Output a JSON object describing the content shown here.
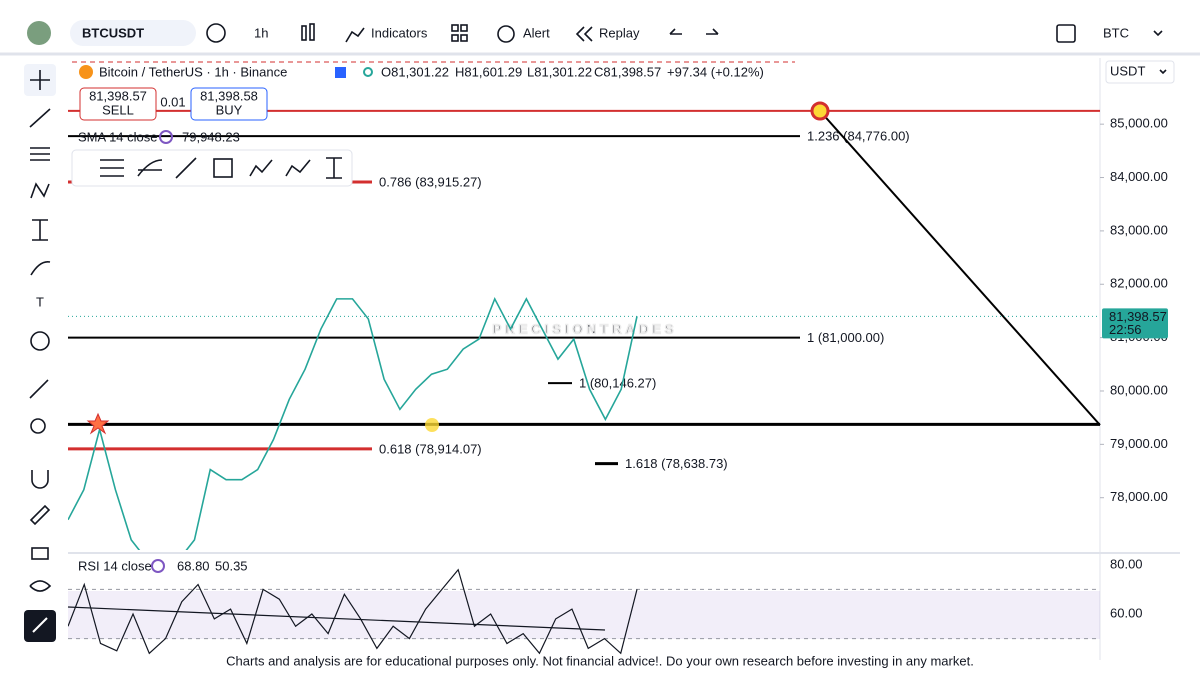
{
  "toolbar": {
    "symbol": "BTCUSDT",
    "interval": "1h",
    "indicators": "Indicators",
    "alert": "Alert",
    "replay": "Replay",
    "currency": "BTC"
  },
  "legend": {
    "title": "Bitcoin / TetherUS · 1h · Binance",
    "open": "O81,301.22",
    "high": "H81,601.29",
    "low": "L81,301.22",
    "close": "C81,398.57",
    "change": "+97.34 (+0.12%)"
  },
  "trade": {
    "sell_price": "81,398.57",
    "sell": "SELL",
    "spread": "0.01",
    "buy_price": "81,398.58",
    "buy": "BUY"
  },
  "sma": {
    "label": "SMA 14 close",
    "value": "79,948.23"
  },
  "watermark": "PRECISIONTRADES",
  "chart_data": {
    "type": "line",
    "unit": "USDT",
    "ylim": [
      77020,
      86240
    ],
    "yticks": [
      {
        "value": 78000,
        "label": "78,000.00"
      },
      {
        "value": 79000,
        "label": "79,000.00"
      },
      {
        "value": 80000,
        "label": "80,000.00"
      },
      {
        "value": 81000,
        "label": "81,000.00"
      },
      {
        "value": 82000,
        "label": "82,000.00"
      },
      {
        "value": 83000,
        "label": "83,000.00"
      },
      {
        "value": 84000,
        "label": "84,000.00"
      },
      {
        "value": 85000,
        "label": "85,000.00"
      }
    ],
    "last_price": {
      "value": 81398.57,
      "label": "81,398.57"
    },
    "countdown": "22:56",
    "levels": [
      {
        "value": 85250,
        "color": "#d32f2f"
      },
      {
        "value": 84776,
        "label": "1.236 (84,776.00)",
        "color": "#000000"
      },
      {
        "value": 83915.27,
        "label": "0.786 (83,915.27)",
        "color": "#d32f2f"
      },
      {
        "value": 81000,
        "label": "1 (81,000.00)",
        "color": "#000000"
      },
      {
        "value": 80146.27,
        "label": "1 (80,146.27)",
        "color": "#000000"
      },
      {
        "value": 79375,
        "color": "#000000"
      },
      {
        "value": 78914.07,
        "label": "0.618 (78,914.07)",
        "color": "#d32f2f"
      },
      {
        "value": 78638.73,
        "label": "1.618 (78,638.73)",
        "color": "#000000"
      }
    ],
    "series": [
      {
        "name": "BTCUSDT",
        "color": "#26a69a",
        "values": [
          77586,
          78150,
          79279,
          78150,
          77209,
          76833,
          76833,
          76833,
          77209,
          78527,
          78338,
          78338,
          78527,
          79091,
          79844,
          80408,
          81161,
          81726,
          81726,
          81350,
          80220,
          79656,
          80032,
          80314,
          80408,
          80785,
          80972,
          81726,
          81161,
          81726,
          81161,
          80596,
          80972,
          80032,
          79467,
          80032,
          81398.57
        ]
      }
    ]
  },
  "rsi": {
    "label": "RSI 14 close",
    "value": "68.80",
    "signal": "50.35",
    "ylim": [
      42.5,
      84
    ],
    "yticks": [
      {
        "value": 80,
        "label": "80.00"
      },
      {
        "value": 60,
        "label": "60.00"
      }
    ],
    "bands": [
      70,
      50
    ],
    "values": [
      55,
      72,
      48,
      45,
      60,
      44,
      50,
      65,
      72,
      58,
      62,
      48,
      70,
      66,
      55,
      60,
      52,
      68,
      58,
      46,
      55,
      50,
      62,
      70,
      78,
      55,
      60,
      48,
      52,
      44,
      58,
      62,
      46,
      50,
      44,
      70
    ]
  },
  "footer": "Charts and analysis are for educational purposes only. Not financial advice!. Do your own research before investing in any market."
}
